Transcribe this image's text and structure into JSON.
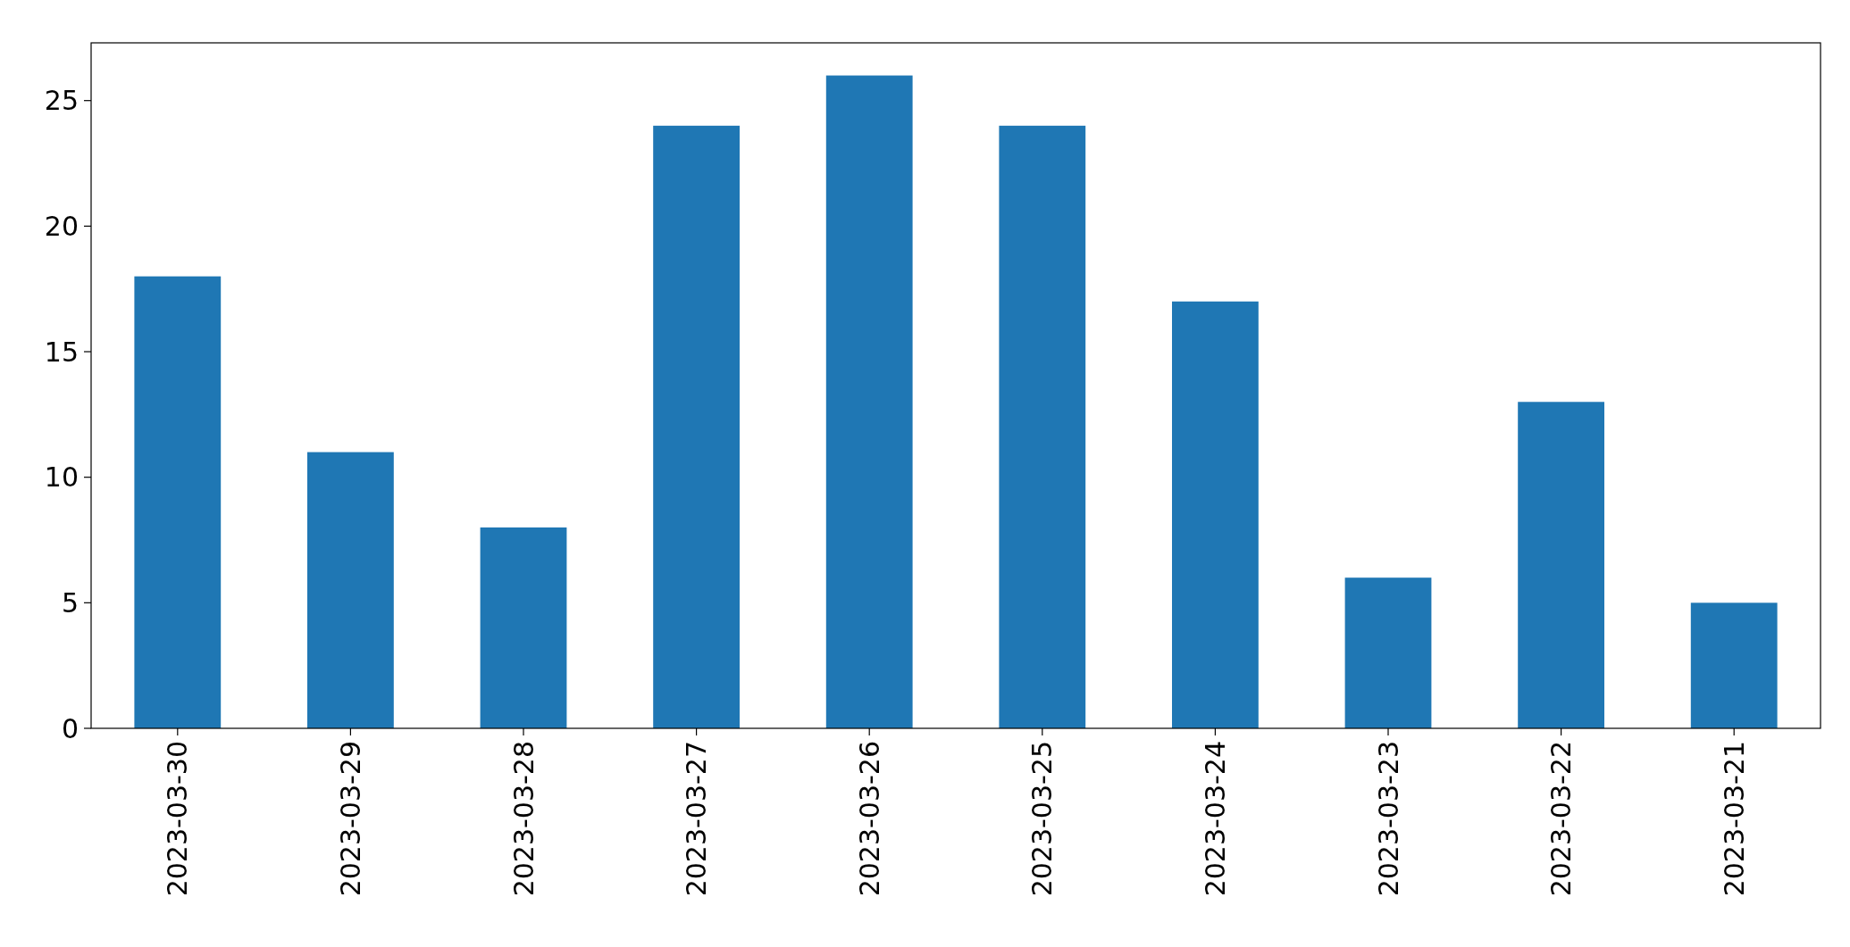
{
  "chart_data": {
    "type": "bar",
    "categories": [
      "2023-03-30",
      "2023-03-29",
      "2023-03-28",
      "2023-03-27",
      "2023-03-26",
      "2023-03-25",
      "2023-03-24",
      "2023-03-23",
      "2023-03-22",
      "2023-03-21"
    ],
    "values": [
      18,
      11,
      8,
      24,
      26,
      24,
      17,
      6,
      13,
      5
    ],
    "color": "#1f77b4",
    "ylim": [
      0,
      27.3
    ],
    "yticks": [
      0,
      5,
      10,
      15,
      20,
      25
    ]
  }
}
